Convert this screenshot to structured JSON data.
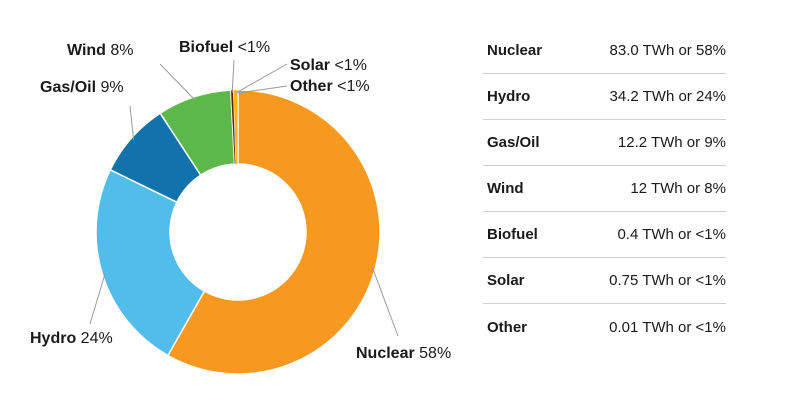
{
  "chart_data": {
    "type": "pie",
    "slices": [
      {
        "name": "Nuclear",
        "value": 83.0,
        "label_pct": "58%",
        "table_value": "83.0 TWh or 58%",
        "color": "#f7991f"
      },
      {
        "name": "Hydro",
        "value": 34.2,
        "label_pct": "24%",
        "table_value": "34.2 TWh or 24%",
        "color": "#52bdeb"
      },
      {
        "name": "Gas/Oil",
        "value": 12.2,
        "label_pct": "9%",
        "table_value": "12.2 TWh or 9%",
        "color": "#1272ab"
      },
      {
        "name": "Wind",
        "value": 12,
        "label_pct": "8%",
        "table_value": "12 TWh or 8%",
        "color": "#5cb84a"
      },
      {
        "name": "Biofuel",
        "value": 0.4,
        "label_pct": "<1%",
        "table_value": "0.4 TWh or <1%",
        "color": "#6b1d10"
      },
      {
        "name": "Solar",
        "value": 0.75,
        "label_pct": "<1%",
        "table_value": "0.75 TWh or <1%",
        "color": "#f6b61c"
      },
      {
        "name": "Other",
        "value": 0.01,
        "label_pct": "<1%",
        "table_value": "0.01 TWh or <1%",
        "color": "#9e9e9e"
      }
    ]
  }
}
